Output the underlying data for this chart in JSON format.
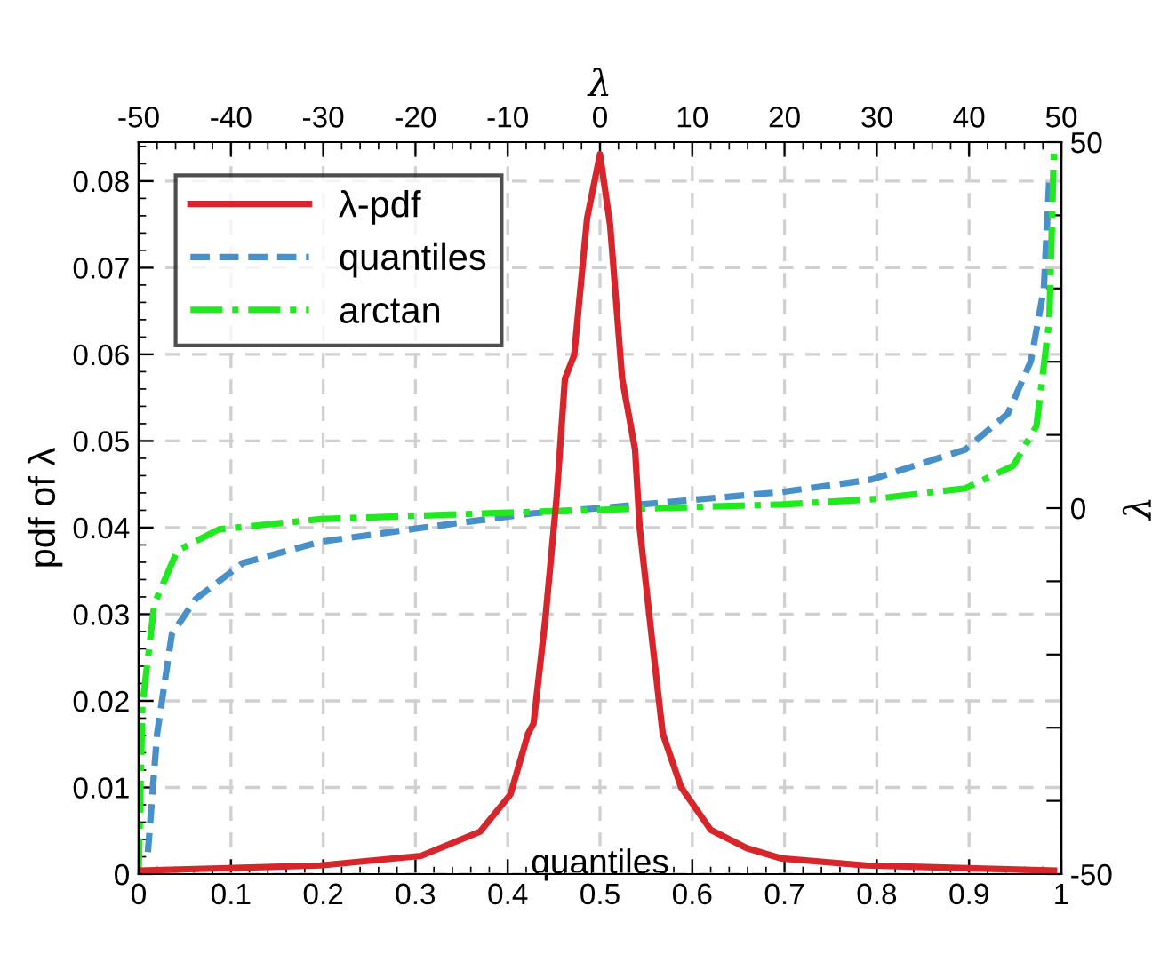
{
  "chart_data": {
    "type": "line",
    "xlabel": "quantiles",
    "x2label": "λ",
    "ylabel": "pdf of λ",
    "y2label": "λ",
    "xlim": [
      0,
      1
    ],
    "xticks": [
      0,
      0.1,
      0.2,
      0.3,
      0.4,
      0.5,
      0.6,
      0.7,
      0.8,
      0.9,
      1
    ],
    "x2lim": [
      -50,
      50
    ],
    "x2ticks": [
      -50,
      -40,
      -30,
      -20,
      -10,
      0,
      10,
      20,
      30,
      40,
      50
    ],
    "ylim": [
      0,
      0.0845
    ],
    "yticks": [
      0,
      0.01,
      0.02,
      0.03,
      0.04,
      0.05,
      0.06,
      0.07,
      0.08
    ],
    "y2lim": [
      -50,
      50
    ],
    "y2ticks": [
      -50,
      {
        "value": -40,
        "label": null
      },
      {
        "value": -30,
        "label": null
      },
      {
        "value": -20,
        "label": null
      },
      {
        "value": -10,
        "label": null
      },
      0,
      {
        "value": 10,
        "label": null
      },
      {
        "value": 20,
        "label": null
      },
      {
        "value": 30,
        "label": null
      },
      {
        "value": 40,
        "label": null
      },
      50
    ],
    "grid": true,
    "legend": "top left",
    "series": [
      {
        "name": "λ-pdf",
        "color": "#d7262b",
        "axis": "x2",
        "line_style": "solid",
        "x": [
          -50,
          -30.3,
          -19.4,
          -13,
          -9.7,
          -7.8,
          -7.2,
          -5.9,
          -4.7,
          -3.8,
          -2.8,
          -1.4,
          0,
          1.1,
          2.4,
          3.8,
          4.3,
          5.7,
          6.8,
          8.8,
          12.0,
          15.9,
          19.7,
          28.8,
          49.2
        ],
        "values": [
          0.0004,
          0.001,
          0.0021,
          0.0049,
          0.0092,
          0.0162,
          0.0174,
          0.0297,
          0.0435,
          0.0572,
          0.0599,
          0.0757,
          0.0831,
          0.0749,
          0.0572,
          0.049,
          0.04,
          0.0265,
          0.0162,
          0.01,
          0.0051,
          0.003,
          0.0018,
          0.001,
          0.0004
        ]
      },
      {
        "name": "quantiles",
        "color": "#4a90c8",
        "axis": "y2",
        "line_style": "dashed",
        "x": [
          0.01,
          0.02,
          0.036,
          0.062,
          0.113,
          0.197,
          0.306,
          0.428,
          0.5,
          0.697,
          0.794,
          0.896,
          0.942,
          0.967,
          0.981,
          0.987
        ],
        "values": [
          -47,
          -30.8,
          -17.2,
          -12.4,
          -7.5,
          -4.6,
          -2.7,
          -0.7,
          0,
          2.2,
          3.9,
          8.0,
          12.9,
          20.1,
          29.9,
          45.1
        ]
      },
      {
        "name": "arctan",
        "color": "#22e822",
        "axis": "y2",
        "line_style": "dashdot",
        "x": [
          0,
          0.004,
          0.017,
          0.042,
          0.087,
          0.197,
          0.428,
          0.697,
          0.794,
          0.896,
          0.948,
          0.973,
          0.987,
          0.992
        ],
        "values": [
          -49.5,
          -27,
          -13.1,
          -5.8,
          -2.9,
          -1.5,
          -0.5,
          0.5,
          1.2,
          2.7,
          5.8,
          11.2,
          25.7,
          49.3
        ]
      }
    ]
  }
}
